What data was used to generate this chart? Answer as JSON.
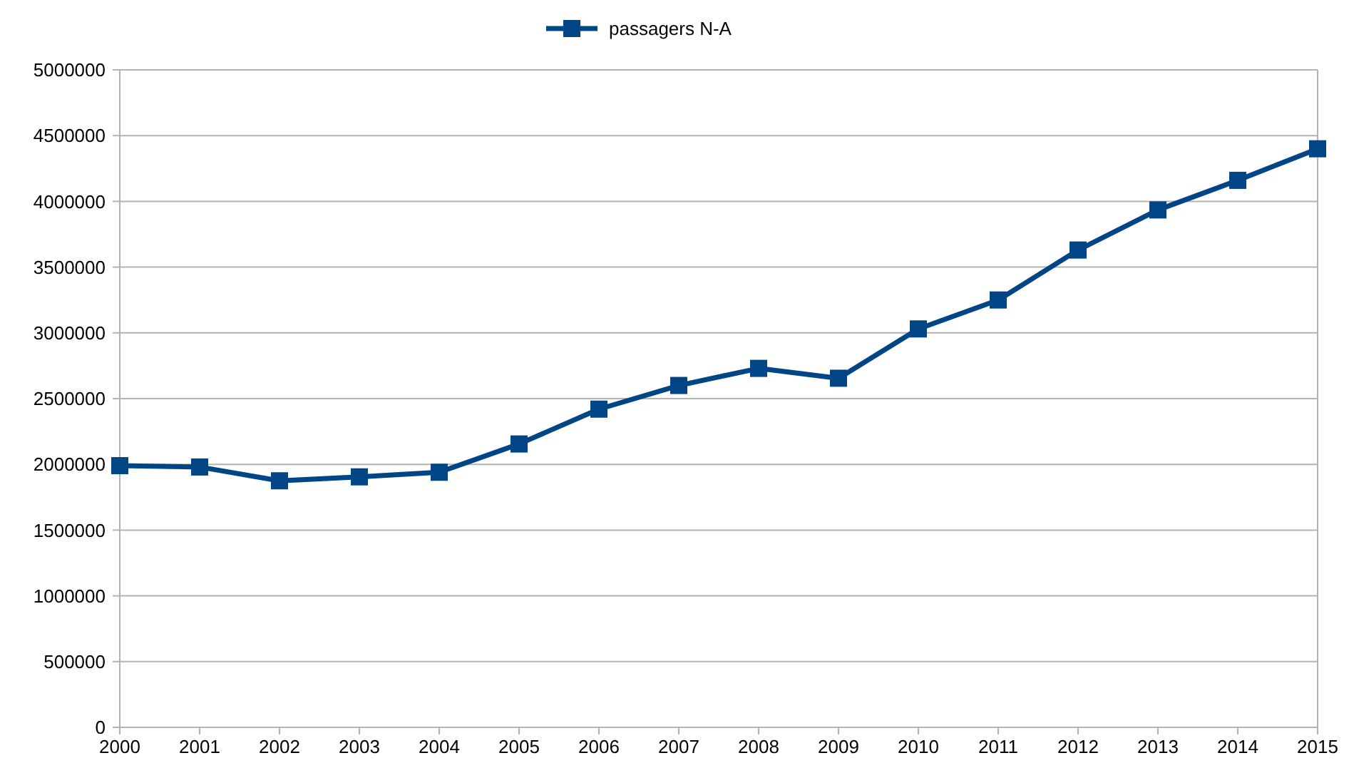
{
  "chart_data": {
    "type": "line",
    "x": [
      2000,
      2001,
      2002,
      2003,
      2004,
      2005,
      2006,
      2007,
      2008,
      2009,
      2010,
      2011,
      2012,
      2013,
      2014,
      2015
    ],
    "series": [
      {
        "name": "passagers N-A",
        "color": "#004586",
        "values": [
          1990000,
          1980000,
          1875000,
          1905000,
          1940000,
          2155000,
          2420000,
          2600000,
          2730000,
          2655000,
          3030000,
          3250000,
          3630000,
          3935000,
          4160000,
          4400000
        ]
      }
    ],
    "xlim": [
      2000,
      2015
    ],
    "xticks": [
      2000,
      2001,
      2002,
      2003,
      2004,
      2005,
      2006,
      2007,
      2008,
      2009,
      2010,
      2011,
      2012,
      2013,
      2014,
      2015
    ],
    "ylim": [
      0,
      5000000
    ],
    "yticks": [
      0,
      500000,
      1000000,
      1500000,
      2000000,
      2500000,
      3000000,
      3500000,
      4000000,
      4500000,
      5000000
    ],
    "grid": "y",
    "legend": "top",
    "marker": "square",
    "line_style": "solid"
  }
}
